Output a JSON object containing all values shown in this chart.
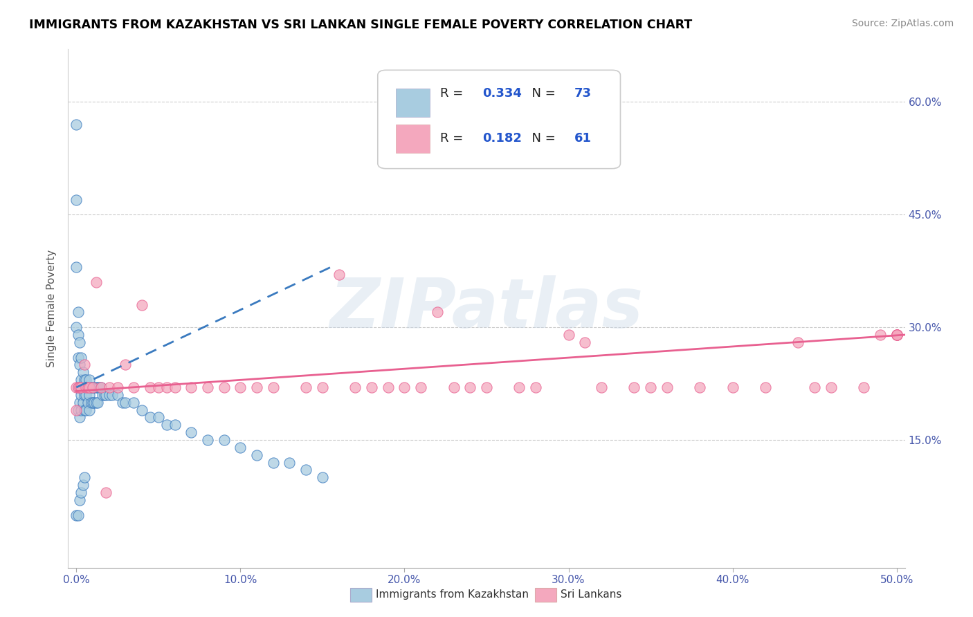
{
  "title": "IMMIGRANTS FROM KAZAKHSTAN VS SRI LANKAN SINGLE FEMALE POVERTY CORRELATION CHART",
  "source": "Source: ZipAtlas.com",
  "ylabel": "Single Female Poverty",
  "xlim": [
    -0.005,
    0.505
  ],
  "ylim": [
    -0.02,
    0.67
  ],
  "xticks": [
    0.0,
    0.1,
    0.2,
    0.3,
    0.4,
    0.5
  ],
  "yticks_right": [
    0.15,
    0.3,
    0.45,
    0.6
  ],
  "ytick_labels_right": [
    "15.0%",
    "30.0%",
    "45.0%",
    "60.0%"
  ],
  "xtick_labels": [
    "0.0%",
    "10.0%",
    "20.0%",
    "30.0%",
    "40.0%",
    "50.0%"
  ],
  "legend_label1": "Immigrants from Kazakhstan",
  "legend_label2": "Sri Lankans",
  "R1": "0.334",
  "N1": "73",
  "R2": "0.182",
  "N2": "61",
  "blue_color": "#a8cce0",
  "pink_color": "#f4a8be",
  "blue_line_color": "#3a7abf",
  "pink_line_color": "#e86090",
  "watermark_text": "ZIPatlas",
  "kaz_x": [
    0.0,
    0.0,
    0.0,
    0.0,
    0.001,
    0.001,
    0.001,
    0.001,
    0.001,
    0.002,
    0.002,
    0.002,
    0.002,
    0.002,
    0.003,
    0.003,
    0.003,
    0.003,
    0.004,
    0.004,
    0.004,
    0.005,
    0.005,
    0.005,
    0.006,
    0.006,
    0.006,
    0.007,
    0.007,
    0.008,
    0.008,
    0.008,
    0.009,
    0.009,
    0.01,
    0.01,
    0.011,
    0.011,
    0.012,
    0.012,
    0.013,
    0.013,
    0.014,
    0.015,
    0.016,
    0.017,
    0.018,
    0.02,
    0.022,
    0.025,
    0.028,
    0.03,
    0.035,
    0.04,
    0.045,
    0.05,
    0.055,
    0.06,
    0.07,
    0.08,
    0.09,
    0.1,
    0.11,
    0.12,
    0.13,
    0.14,
    0.15,
    0.0,
    0.001,
    0.002,
    0.003,
    0.004,
    0.005
  ],
  "kaz_y": [
    0.57,
    0.47,
    0.38,
    0.3,
    0.32,
    0.29,
    0.26,
    0.22,
    0.19,
    0.28,
    0.25,
    0.22,
    0.2,
    0.18,
    0.26,
    0.23,
    0.21,
    0.19,
    0.24,
    0.22,
    0.2,
    0.23,
    0.21,
    0.19,
    0.23,
    0.21,
    0.19,
    0.22,
    0.2,
    0.23,
    0.21,
    0.19,
    0.22,
    0.2,
    0.22,
    0.2,
    0.22,
    0.2,
    0.22,
    0.2,
    0.22,
    0.2,
    0.22,
    0.22,
    0.21,
    0.21,
    0.21,
    0.21,
    0.21,
    0.21,
    0.2,
    0.2,
    0.2,
    0.19,
    0.18,
    0.18,
    0.17,
    0.17,
    0.16,
    0.15,
    0.15,
    0.14,
    0.13,
    0.12,
    0.12,
    0.11,
    0.1,
    0.05,
    0.05,
    0.07,
    0.08,
    0.09,
    0.1
  ],
  "sri_x": [
    0.0,
    0.0,
    0.001,
    0.002,
    0.003,
    0.005,
    0.006,
    0.007,
    0.008,
    0.01,
    0.012,
    0.015,
    0.018,
    0.02,
    0.025,
    0.03,
    0.035,
    0.04,
    0.045,
    0.05,
    0.055,
    0.06,
    0.07,
    0.08,
    0.09,
    0.1,
    0.11,
    0.12,
    0.14,
    0.15,
    0.16,
    0.17,
    0.18,
    0.19,
    0.2,
    0.21,
    0.22,
    0.23,
    0.24,
    0.25,
    0.27,
    0.28,
    0.3,
    0.31,
    0.32,
    0.34,
    0.35,
    0.36,
    0.38,
    0.4,
    0.42,
    0.44,
    0.45,
    0.46,
    0.48,
    0.49,
    0.5,
    0.5,
    0.5,
    0.5,
    0.5
  ],
  "sri_y": [
    0.22,
    0.19,
    0.22,
    0.22,
    0.22,
    0.25,
    0.22,
    0.22,
    0.22,
    0.22,
    0.36,
    0.22,
    0.08,
    0.22,
    0.22,
    0.25,
    0.22,
    0.33,
    0.22,
    0.22,
    0.22,
    0.22,
    0.22,
    0.22,
    0.22,
    0.22,
    0.22,
    0.22,
    0.22,
    0.22,
    0.37,
    0.22,
    0.22,
    0.22,
    0.22,
    0.22,
    0.32,
    0.22,
    0.22,
    0.22,
    0.22,
    0.22,
    0.29,
    0.28,
    0.22,
    0.22,
    0.22,
    0.22,
    0.22,
    0.22,
    0.22,
    0.28,
    0.22,
    0.22,
    0.22,
    0.29,
    0.29,
    0.29,
    0.29,
    0.29,
    0.29
  ],
  "kaz_trendline_x": [
    0.0,
    0.155
  ],
  "kaz_trendline_y_start": 0.22,
  "kaz_trendline_y_end": 0.38,
  "sri_trendline_x": [
    0.0,
    0.505
  ],
  "sri_trendline_y_start": 0.215,
  "sri_trendline_y_end": 0.29
}
